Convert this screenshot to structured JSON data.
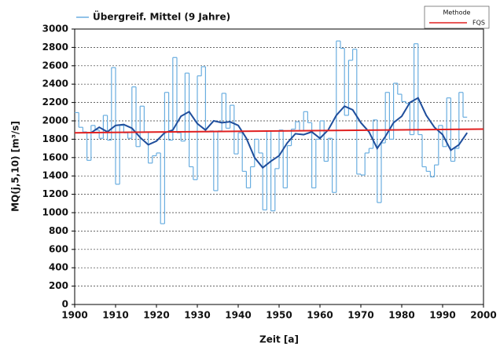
{
  "chart_data": {
    "type": "line",
    "x_label": "Zeit [a]",
    "y_label": "MQ(j,5,10) [m³/s]",
    "legend_title": "Methode",
    "xlim": [
      1900,
      2000
    ],
    "xticks": [
      1900,
      1910,
      1920,
      1930,
      1940,
      1950,
      1960,
      1970,
      1980,
      1990,
      2000
    ],
    "ylim": [
      0,
      3000
    ],
    "yticks": [
      0,
      200,
      400,
      600,
      800,
      1000,
      1200,
      1400,
      1600,
      1800,
      2000,
      2200,
      2400,
      2600,
      2800,
      3000
    ],
    "grid": true,
    "series": [
      {
        "color": "#6aaee0",
        "step": true,
        "x": [
          1900,
          1901,
          1902,
          1903,
          1904,
          1905,
          1906,
          1907,
          1908,
          1909,
          1910,
          1911,
          1912,
          1913,
          1914,
          1915,
          1916,
          1917,
          1918,
          1919,
          1920,
          1921,
          1922,
          1923,
          1924,
          1925,
          1926,
          1927,
          1928,
          1929,
          1930,
          1931,
          1932,
          1933,
          1934,
          1935,
          1936,
          1937,
          1938,
          1939,
          1940,
          1941,
          1942,
          1943,
          1944,
          1945,
          1946,
          1947,
          1948,
          1949,
          1950,
          1951,
          1952,
          1953,
          1954,
          1955,
          1956,
          1957,
          1958,
          1959,
          1960,
          1961,
          1962,
          1963,
          1964,
          1965,
          1966,
          1967,
          1968,
          1969,
          1970,
          1971,
          1972,
          1973,
          1974,
          1975,
          1976,
          1977,
          1978,
          1979,
          1980,
          1981,
          1982,
          1983,
          1984,
          1985,
          1986,
          1987,
          1988,
          1989,
          1990,
          1991,
          1992,
          1993,
          1994,
          1995
        ],
        "values": [
          2090,
          1930,
          1880,
          1570,
          1950,
          1900,
          1810,
          2060,
          1790,
          2580,
          1310,
          1950,
          1870,
          1810,
          2370,
          1720,
          2160,
          1880,
          1540,
          1620,
          1650,
          880,
          2310,
          1790,
          2690,
          1870,
          1780,
          2520,
          1500,
          1360,
          2490,
          2590,
          1880,
          1890,
          1240,
          1890,
          2300,
          1920,
          2170,
          1640,
          1870,
          1450,
          1270,
          1500,
          1800,
          1650,
          1030,
          1890,
          1020,
          1480,
          1900,
          1270,
          1730,
          1910,
          1990,
          1890,
          2100,
          1980,
          1270,
          1800,
          2000,
          1560,
          1810,
          1220,
          2870,
          2790,
          2060,
          2660,
          2780,
          1420,
          1410,
          1650,
          1700,
          2010,
          1110,
          1760,
          2310,
          1800,
          2410,
          2290,
          2210,
          2190,
          1850,
          2840,
          1850,
          1500,
          1450,
          1390,
          1520,
          1950,
          1720,
          2250,
          1560,
          1700,
          2310,
          2040
        ]
      },
      {
        "name": "Übergreif. Mittel (9 Jahre)",
        "color": "#1f4e9c",
        "x": [
          1904,
          1906,
          1908,
          1910,
          1912,
          1914,
          1916,
          1918,
          1920,
          1922,
          1924,
          1926,
          1928,
          1930,
          1932,
          1934,
          1936,
          1938,
          1940,
          1942,
          1944,
          1946,
          1948,
          1950,
          1952,
          1954,
          1956,
          1958,
          1960,
          1962,
          1964,
          1966,
          1968,
          1970,
          1972,
          1974,
          1976,
          1978,
          1980,
          1982,
          1984,
          1986,
          1988,
          1990,
          1992,
          1994,
          1996
        ],
        "values": [
          1870,
          1930,
          1880,
          1950,
          1960,
          1920,
          1820,
          1740,
          1780,
          1870,
          1900,
          2050,
          2100,
          1970,
          1900,
          2000,
          1980,
          1990,
          1950,
          1810,
          1600,
          1490,
          1560,
          1620,
          1760,
          1860,
          1850,
          1880,
          1810,
          1900,
          2060,
          2160,
          2120,
          1980,
          1880,
          1700,
          1830,
          1980,
          2050,
          2200,
          2250,
          2060,
          1930,
          1850,
          1680,
          1740,
          1870
        ]
      },
      {
        "name": "FQS",
        "color": "#e02020",
        "x": [
          1900,
          2000
        ],
        "values": [
          1870,
          1910
        ]
      }
    ]
  }
}
